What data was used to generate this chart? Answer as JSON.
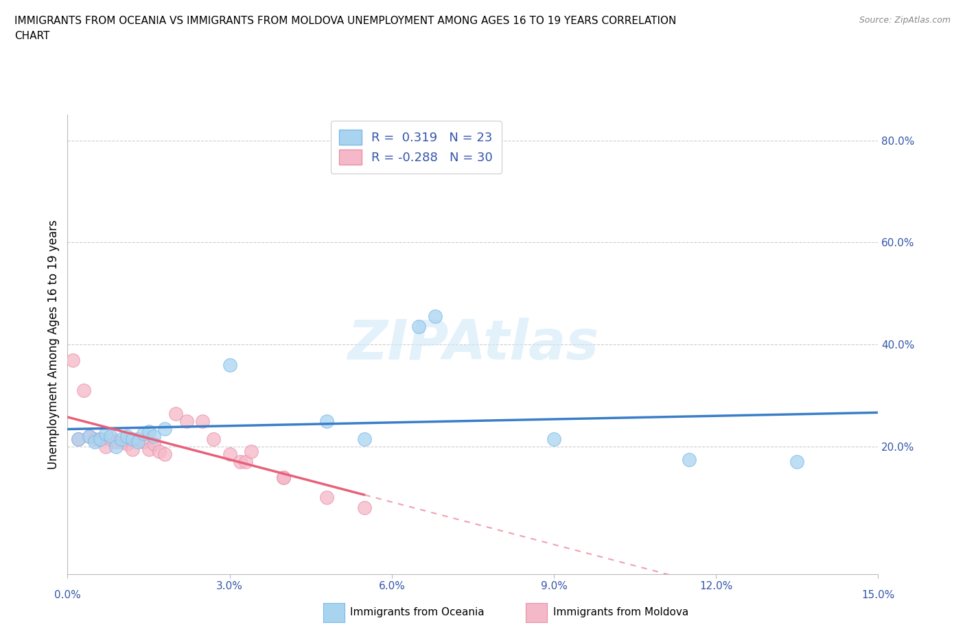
{
  "title_line1": "IMMIGRANTS FROM OCEANIA VS IMMIGRANTS FROM MOLDOVA UNEMPLOYMENT AMONG AGES 16 TO 19 YEARS CORRELATION",
  "title_line2": "CHART",
  "source": "Source: ZipAtlas.com",
  "ylabel": "Unemployment Among Ages 16 to 19 years",
  "xlabel_oceania": "Immigrants from Oceania",
  "xlabel_moldova": "Immigrants from Moldova",
  "xlim": [
    0.0,
    0.15
  ],
  "ylim": [
    -0.05,
    0.85
  ],
  "xticks": [
    0.0,
    0.03,
    0.06,
    0.09,
    0.12,
    0.15
  ],
  "xtick_labels_inner": [
    "",
    "3.0%",
    "6.0%",
    "9.0%",
    "12.0%",
    ""
  ],
  "yticks": [
    0.2,
    0.4,
    0.6,
    0.8
  ],
  "ytick_labels": [
    "20.0%",
    "40.0%",
    "60.0%",
    "80.0%"
  ],
  "oceania_color": "#A8D4F0",
  "oceania_edge": "#7BB8E8",
  "moldova_color": "#F5B8C8",
  "moldova_edge": "#E890A8",
  "trend_oceania_color": "#3A7EC8",
  "trend_moldova_color": "#E8607A",
  "trend_moldova_dash_color": "#F0A0B0",
  "R_oceania": 0.319,
  "N_oceania": 23,
  "R_moldova": -0.288,
  "N_moldova": 30,
  "tick_color": "#3355AA",
  "oceania_x": [
    0.002,
    0.004,
    0.005,
    0.006,
    0.007,
    0.008,
    0.009,
    0.01,
    0.011,
    0.012,
    0.013,
    0.014,
    0.015,
    0.016,
    0.018,
    0.03,
    0.048,
    0.055,
    0.065,
    0.068,
    0.09,
    0.115,
    0.135
  ],
  "oceania_y": [
    0.215,
    0.22,
    0.21,
    0.215,
    0.225,
    0.22,
    0.2,
    0.215,
    0.22,
    0.215,
    0.21,
    0.225,
    0.23,
    0.22,
    0.235,
    0.36,
    0.25,
    0.215,
    0.435,
    0.455,
    0.215,
    0.175,
    0.17
  ],
  "moldova_x": [
    0.001,
    0.002,
    0.003,
    0.004,
    0.005,
    0.006,
    0.007,
    0.008,
    0.009,
    0.01,
    0.011,
    0.012,
    0.013,
    0.014,
    0.015,
    0.016,
    0.017,
    0.018,
    0.02,
    0.022,
    0.025,
    0.027,
    0.03,
    0.032,
    0.033,
    0.034,
    0.04,
    0.04,
    0.048,
    0.055
  ],
  "moldova_y": [
    0.37,
    0.215,
    0.31,
    0.22,
    0.215,
    0.215,
    0.2,
    0.215,
    0.21,
    0.21,
    0.205,
    0.195,
    0.215,
    0.21,
    0.195,
    0.205,
    0.19,
    0.185,
    0.265,
    0.25,
    0.25,
    0.215,
    0.185,
    0.17,
    0.17,
    0.19,
    0.14,
    0.14,
    0.1,
    0.08
  ],
  "watermark": "ZIPAtlas",
  "background_color": "#FFFFFF",
  "grid_color": "#CCCCCC"
}
